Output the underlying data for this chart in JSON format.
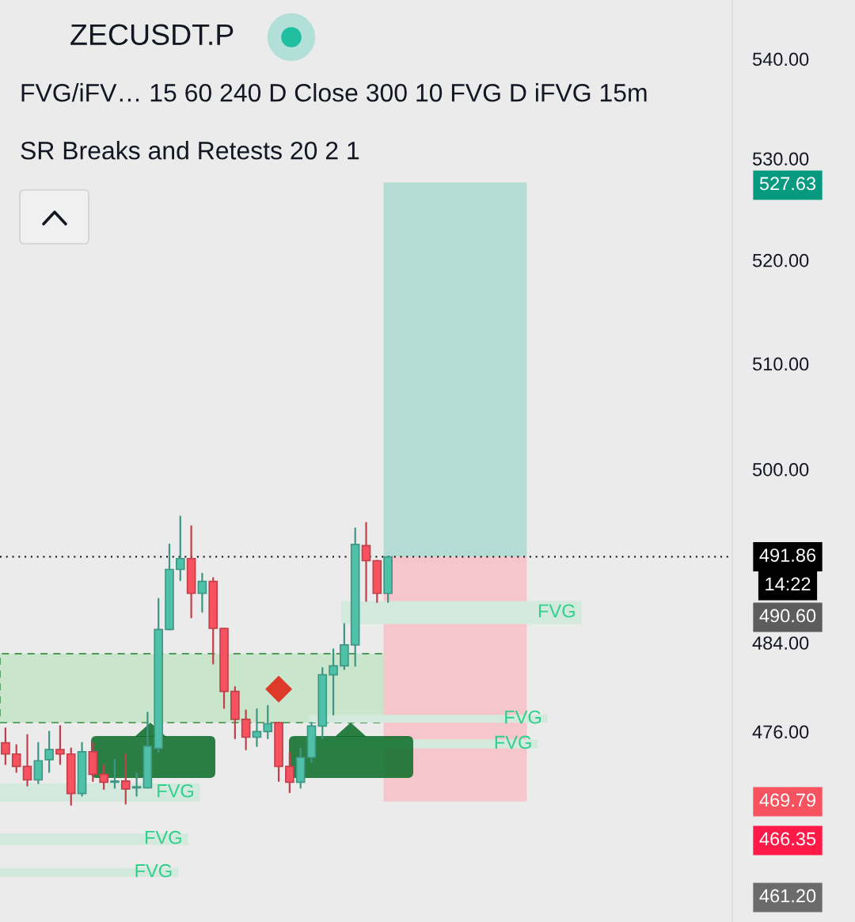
{
  "chart_data": {
    "type": "candlestick",
    "title": "ZECUSDT.P",
    "subtitle": "FVG/iFV… 15 60 240 D Close 300 10 FVG D iFVG 15m\nSR Breaks and Retests 20 2 1",
    "categories": [
      null,
      null,
      null,
      null,
      null,
      null,
      null,
      null,
      null,
      null,
      null,
      null,
      null,
      null,
      null,
      null,
      null,
      null,
      null,
      null,
      null,
      null,
      null,
      null,
      null,
      null,
      null,
      null,
      null,
      null,
      null,
      null,
      null,
      null,
      null,
      null,
      null,
      null,
      null,
      null,
      null,
      null,
      null,
      null,
      null,
      null,
      null,
      null,
      null,
      null,
      null,
      null,
      null,
      null,
      null,
      null,
      null,
      null,
      null,
      null,
      null,
      null,
      null,
      null,
      null,
      null,
      null
    ],
    "ohlc": [
      [
        475.0,
        476.3,
        473.1,
        474.0
      ],
      [
        474.0,
        474.8,
        472.4,
        472.9
      ],
      [
        472.9,
        475.7,
        471.2,
        471.7
      ],
      [
        471.7,
        475.0,
        471.4,
        473.4
      ],
      [
        473.5,
        476.0,
        472.4,
        474.4
      ],
      [
        474.4,
        476.5,
        473.1,
        474.0
      ],
      [
        474.0,
        474.5,
        469.5,
        470.5
      ],
      [
        470.5,
        475.0,
        470.3,
        474.2
      ],
      [
        474.2,
        475.0,
        471.6,
        472.2
      ],
      [
        472.2,
        473.0,
        470.9,
        471.5
      ],
      [
        471.5,
        473.5,
        471.0,
        471.6
      ],
      [
        471.6,
        474.0,
        469.6,
        470.9
      ],
      [
        471.0,
        472.3,
        470.3,
        471.1
      ],
      [
        471.0,
        477.7,
        471.0,
        474.7
      ],
      [
        474.5,
        488.0,
        474.2,
        485.2
      ],
      [
        485.2,
        493.0,
        485.2,
        490.7
      ],
      [
        490.7,
        495.6,
        489.7,
        491.7
      ],
      [
        491.7,
        494.7,
        486.3,
        488.5
      ],
      [
        488.5,
        490.3,
        486.8,
        489.6
      ],
      [
        489.6,
        489.9,
        482.1,
        485.3
      ],
      [
        485.3,
        485.3,
        478.1,
        479.6
      ],
      [
        479.6,
        480.0,
        475.4,
        477.1
      ],
      [
        477.1,
        477.9,
        474.4,
        475.5
      ],
      [
        475.5,
        478.0,
        474.7,
        476.0
      ],
      [
        476.0,
        478.3,
        475.4,
        476.7
      ],
      [
        476.8,
        476.8,
        471.6,
        472.9
      ],
      [
        472.9,
        474.1,
        470.6,
        471.5
      ],
      [
        471.5,
        474.5,
        471.0,
        473.7
      ],
      [
        473.7,
        476.8,
        473.3,
        476.5
      ],
      [
        476.5,
        481.7,
        475.4,
        481.1
      ],
      [
        481.1,
        483.4,
        477.5,
        481.9
      ],
      [
        481.9,
        485.7,
        481.6,
        483.8
      ],
      [
        483.8,
        494.5,
        481.9,
        493.0
      ],
      [
        492.9,
        495.0,
        487.8,
        491.5
      ],
      [
        491.5,
        491.5,
        487.7,
        488.5
      ],
      [
        488.5,
        491.86,
        487.7,
        491.86
      ],
      null,
      null,
      null,
      null,
      null,
      null,
      null,
      null,
      null,
      null,
      null,
      null,
      null,
      null,
      null,
      null,
      null,
      null,
      null,
      null,
      null,
      null,
      null,
      null,
      null,
      null,
      null,
      null,
      null,
      null,
      null
    ],
    "colors": [
      "#f7525f",
      "#f7525f",
      "#f7525f",
      "#4fc1a9",
      "#4fc1a9",
      "#f7525f",
      "#f7525f",
      "#4fc1a9",
      "#f7525f",
      "#f7525f",
      "#4fc1a9",
      "#f7525f",
      "#4fc1a9",
      "#4fc1a9",
      "#4fc1a9",
      "#4fc1a9",
      "#4fc1a9",
      "#f7525f",
      "#4fc1a9",
      "#f7525f",
      "#f7525f",
      "#f7525f",
      "#f7525f",
      "#4fc1a9",
      "#4fc1a9",
      "#f7525f",
      "#f7525f",
      "#4fc1a9",
      "#4fc1a9",
      "#4fc1a9",
      "#4fc1a9",
      "#4fc1a9",
      "#4fc1a9",
      "#f7525f",
      "#f7525f",
      "#4fc1a9",
      null,
      null,
      null,
      null,
      null,
      null,
      null,
      null,
      null,
      null,
      null,
      null,
      null,
      null,
      null,
      null,
      null,
      null,
      null,
      null,
      null,
      null,
      null,
      null,
      null,
      null,
      null,
      null,
      null,
      null,
      null
    ],
    "series": [
      {
        "type": "scatter",
        "color": "#dd3a2a",
        "marker": "diamond",
        "values": [
          null,
          null,
          null,
          null,
          null,
          null,
          null,
          null,
          null,
          null,
          null,
          null,
          null,
          null,
          null,
          null,
          null,
          null,
          null,
          null,
          null,
          null,
          null,
          null,
          null,
          479.8,
          null,
          null,
          null,
          null,
          null,
          null,
          null,
          null,
          null,
          null,
          null,
          null,
          null,
          null,
          null,
          null,
          null,
          null,
          null,
          null,
          null,
          null,
          null,
          null,
          null,
          null,
          null,
          null,
          null,
          null,
          null,
          null,
          null,
          null,
          null,
          null,
          null,
          null,
          null,
          null,
          null
        ]
      }
    ],
    "log": true,
    "ylim": [
      459.3,
      546.0
    ],
    "yticks": [
      {
        "value": 476,
        "label": "476.00"
      },
      {
        "value": 484,
        "label": "484.00"
      },
      {
        "value": 500,
        "label": "500.00"
      },
      {
        "value": 510,
        "label": "510.00"
      },
      {
        "value": 520,
        "label": "520.00"
      },
      {
        "value": 530,
        "label": "530.00"
      },
      {
        "value": 540,
        "label": "540.00"
      }
    ],
    "tick_labels": "y",
    "ref_lines": [
      {
        "axis": "y",
        "value": 491.86,
        "label": "491.86",
        "color": "#000000",
        "line_style": "dotted"
      }
    ],
    "bands": [
      {
        "axis": "y",
        "from": 476.8,
        "to": 483.0,
        "color": "#c9e5cb"
      },
      {
        "axis": "y",
        "from": 491.86,
        "to": 527.63,
        "color": "#b5dcd4"
      },
      {
        "axis": "y",
        "from": 469.79,
        "to": 491.86,
        "color": "#f5c6cb"
      },
      {
        "axis": "y",
        "from": 485.7,
        "to": 487.8,
        "label": "FVG",
        "color": "#d3e9de"
      },
      {
        "axis": "y",
        "from": 476.8,
        "to": 477.5,
        "label": "FVG",
        "color": "#d3e9de"
      },
      {
        "axis": "y",
        "from": 474.5,
        "to": 475.3,
        "label": "FVG",
        "color": "#d3e9de"
      },
      {
        "axis": "y",
        "from": 469.8,
        "to": 471.4,
        "label": "FVG",
        "color": "#d3e9de"
      },
      {
        "axis": "y",
        "from": 466.0,
        "to": 467.0,
        "label": "FVG",
        "color": "#d3e9de"
      },
      {
        "axis": "y",
        "from": 463.2,
        "to": 464.0,
        "label": "FVG",
        "color": "#d3e9de"
      }
    ],
    "annotations": [
      "527.63",
      "14:22",
      "490.60",
      "469.79",
      "466.35",
      "461.20"
    ]
  }
}
